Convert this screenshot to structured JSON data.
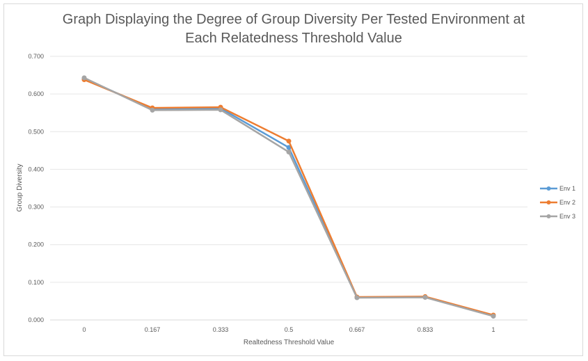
{
  "chart_data": {
    "type": "line",
    "title_line1": "Graph Displaying the Degree of Group Diversity Per Tested Environment at",
    "title_line2": "Each Relatedness Threshold Value",
    "xlabel": "Realtedness Threshold Value",
    "ylabel": "Group Diversity",
    "categories": [
      "0",
      "0.167",
      "0.333",
      "0.5",
      "0.667",
      "0.833",
      "1"
    ],
    "ylim": [
      0,
      0.7
    ],
    "yticks": [
      "0.000",
      "0.100",
      "0.200",
      "0.300",
      "0.400",
      "0.500",
      "0.600",
      "0.700"
    ],
    "grid": true,
    "legend_position": "right",
    "series": [
      {
        "name": "Env 1",
        "color": "#5b9bd5",
        "values": [
          0.641,
          0.56,
          0.562,
          0.458,
          0.06,
          0.061,
          0.012
        ]
      },
      {
        "name": "Env 2",
        "color": "#ed7d31",
        "values": [
          0.638,
          0.563,
          0.565,
          0.475,
          0.061,
          0.062,
          0.013
        ]
      },
      {
        "name": "Env 3",
        "color": "#a5a5a5",
        "values": [
          0.643,
          0.557,
          0.558,
          0.446,
          0.059,
          0.06,
          0.01
        ]
      }
    ]
  }
}
